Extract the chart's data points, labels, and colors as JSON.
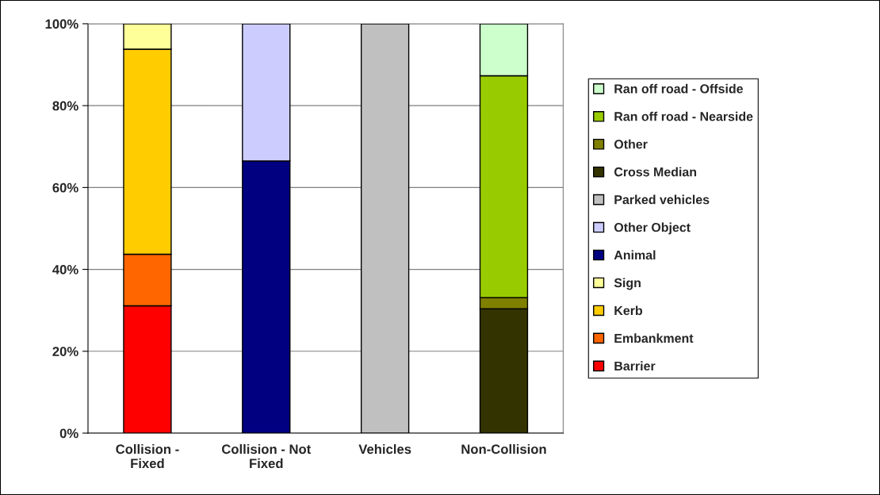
{
  "chart_data": {
    "type": "bar",
    "stacked": true,
    "categories": [
      "Collision -\nFixed",
      "Collision - Not\nFixed",
      "Vehicles",
      "Non-Collision"
    ],
    "series": [
      {
        "name": "Barrier",
        "color": "#ff0000",
        "values": [
          31.1,
          null,
          null,
          null
        ]
      },
      {
        "name": "Embankment",
        "color": "#ff6600",
        "values": [
          12.6,
          null,
          null,
          null
        ]
      },
      {
        "name": "Kerb",
        "color": "#ffcc00",
        "values": [
          50.1,
          null,
          null,
          null
        ]
      },
      {
        "name": "Sign",
        "color": "#ffff99",
        "values": [
          6.2,
          null,
          null,
          null
        ]
      },
      {
        "name": "Animal",
        "color": "#000080",
        "values": [
          null,
          66.5,
          null,
          null
        ]
      },
      {
        "name": "Other Object",
        "color": "#ccccff",
        "values": [
          null,
          33.5,
          null,
          null
        ]
      },
      {
        "name": "Parked vehicles",
        "color": "#c0c0c0",
        "values": [
          null,
          null,
          100,
          null
        ]
      },
      {
        "name": "Cross Median",
        "color": "#333300",
        "values": [
          null,
          null,
          null,
          30.4
        ]
      },
      {
        "name": "Other",
        "color": "#808000",
        "values": [
          null,
          null,
          null,
          2.7
        ]
      },
      {
        "name": "Ran off road - Nearside",
        "color": "#99cc00",
        "values": [
          null,
          null,
          null,
          54.2
        ]
      },
      {
        "name": "Ran off road - Offside",
        "color": "#ccffcc",
        "values": [
          null,
          null,
          null,
          12.7
        ]
      }
    ],
    "ylim": [
      0,
      100
    ],
    "yticks": [
      {
        "value": 0,
        "label": "0%"
      },
      {
        "value": 20,
        "label": "20%"
      },
      {
        "value": 40,
        "label": "40%"
      },
      {
        "value": 60,
        "label": "60%"
      },
      {
        "value": 80,
        "label": "80%"
      },
      {
        "value": 100,
        "label": "100%"
      }
    ],
    "grid": "y",
    "legend": "right"
  }
}
